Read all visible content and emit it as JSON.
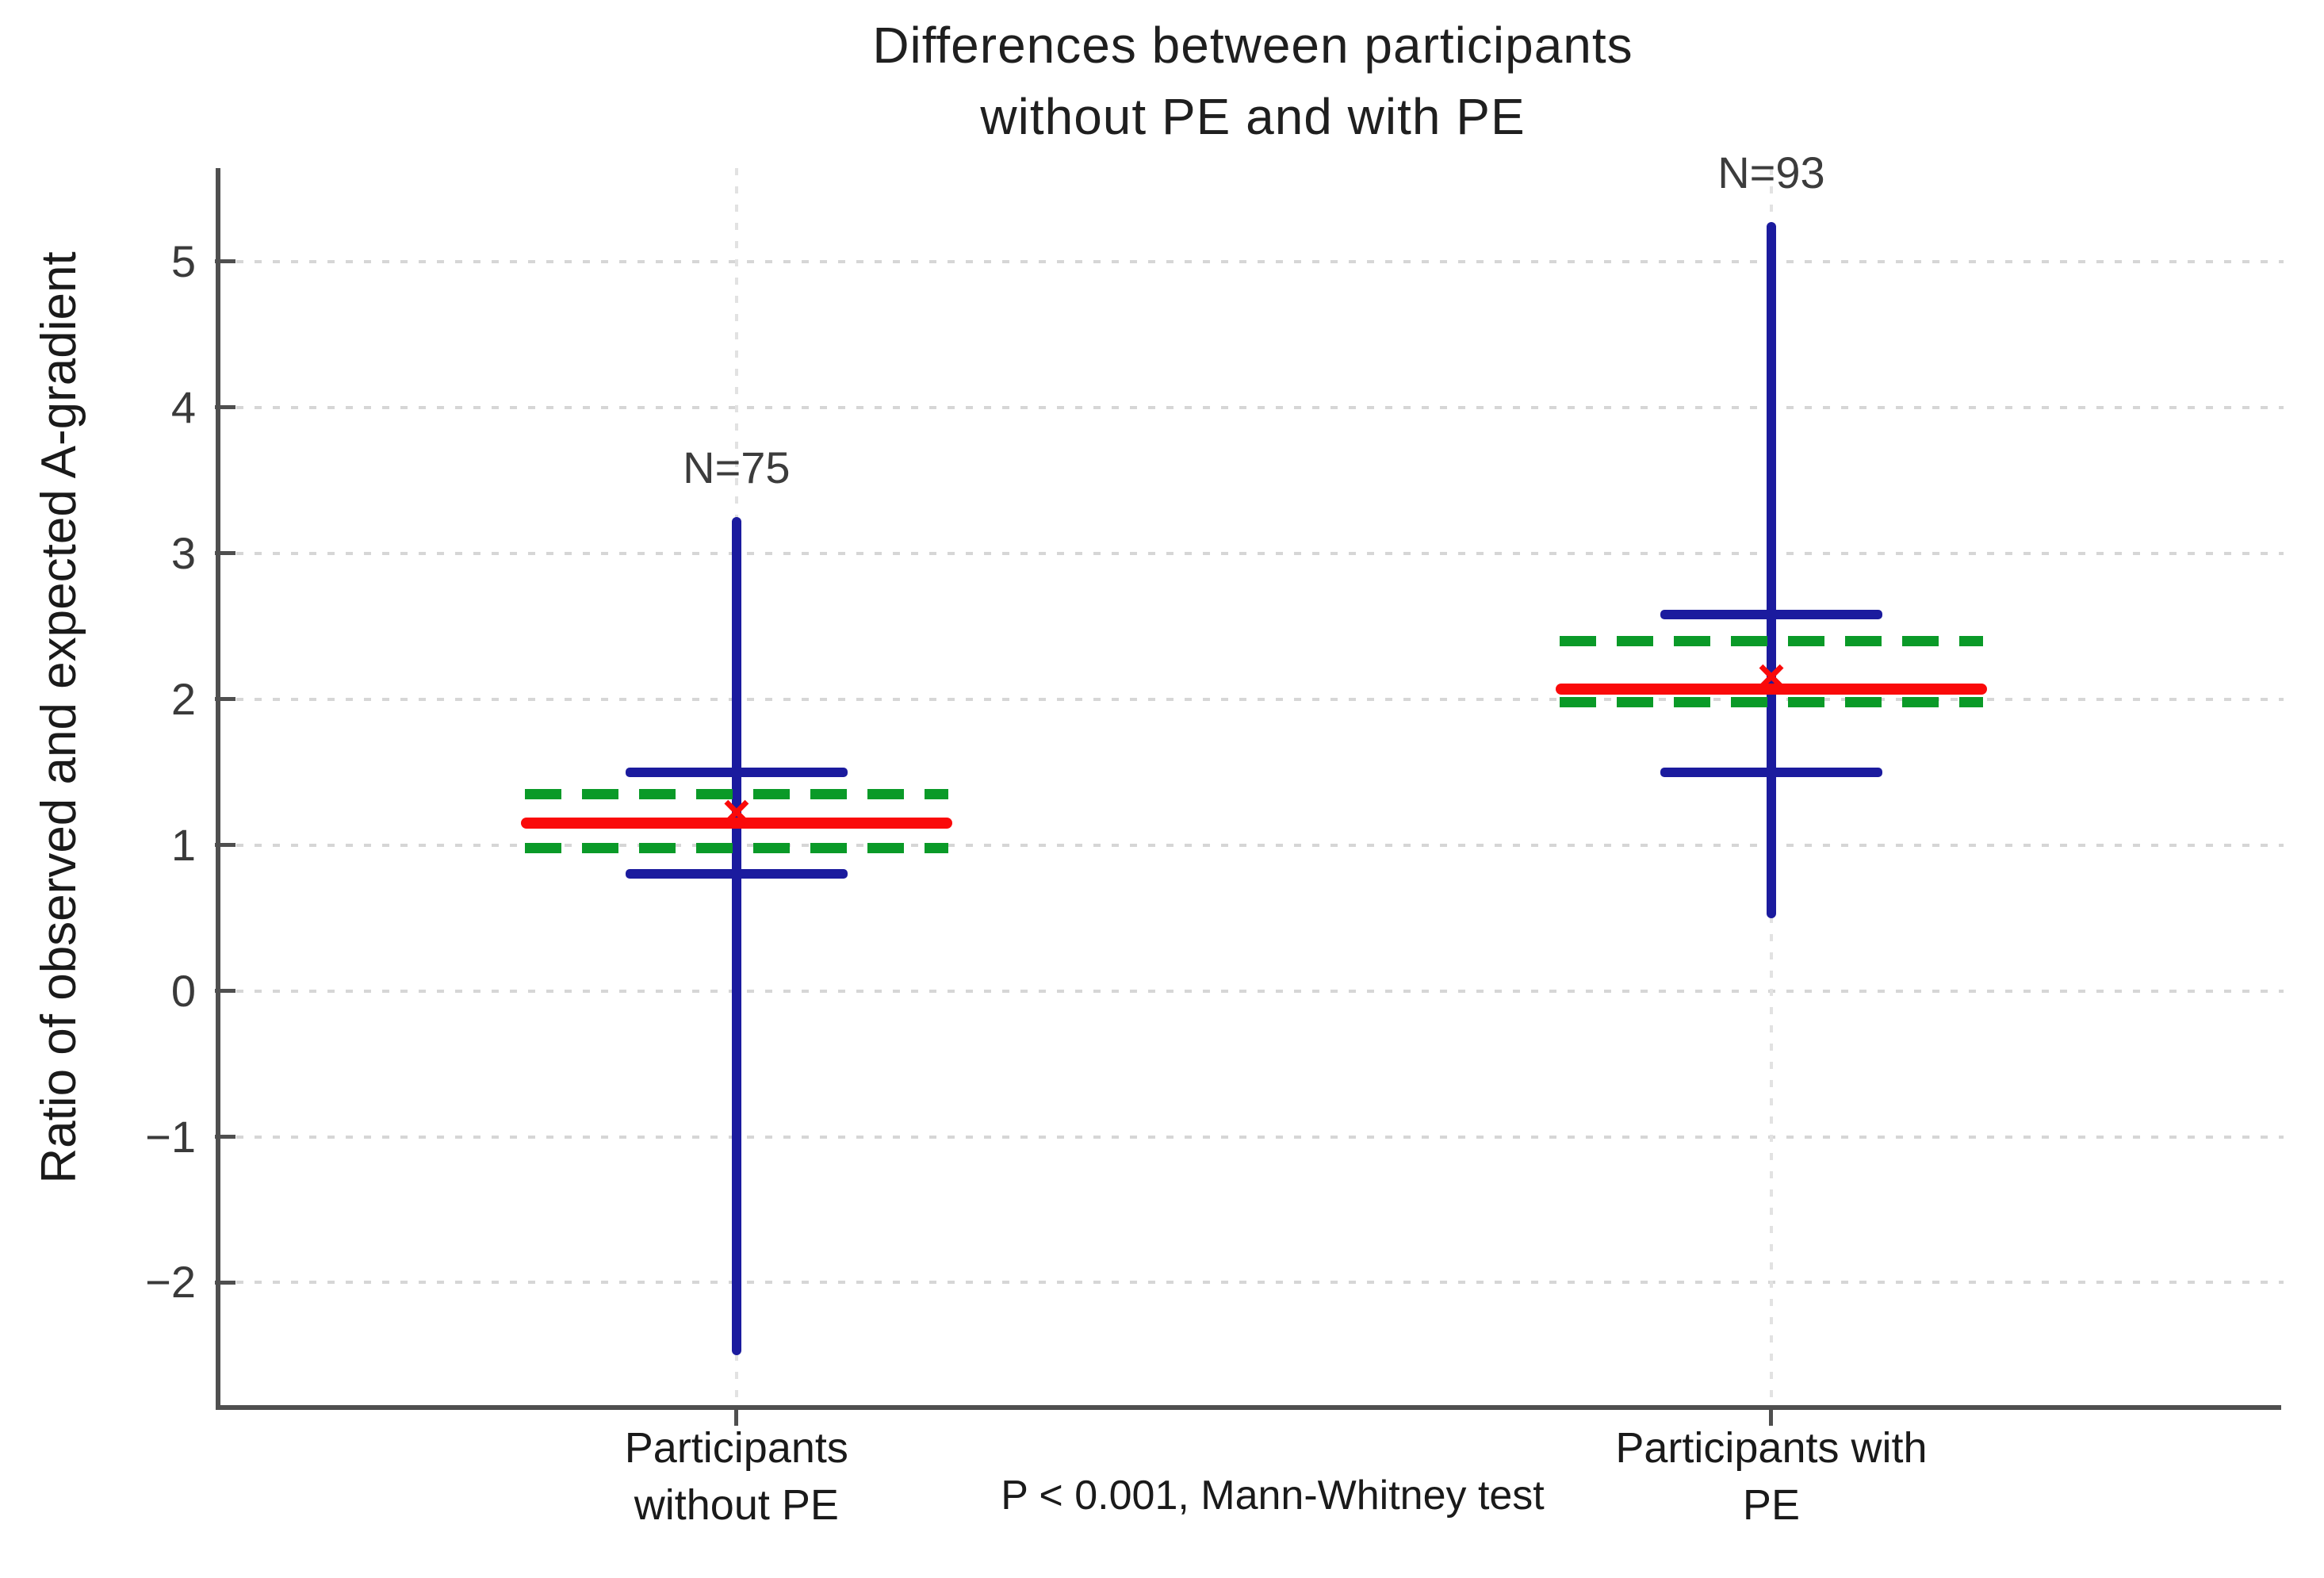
{
  "page": {
    "background": "#ffffff"
  },
  "chart_data": {
    "type": "boxplot",
    "title_lines": [
      "Differences between participants",
      "without PE and with PE"
    ],
    "ylabel": "Ratio of observed and expected A-gradient",
    "annotation": "P < 0.001, Mann-Whitney test",
    "ylim": [
      -2.84,
      5.64
    ],
    "yticks": [
      5,
      4,
      3,
      2,
      1,
      0,
      -1,
      -2
    ],
    "grid": "horizontal dotted gridlines at integer ticks, faint dotted vertical line at each group center",
    "legend_position": "none",
    "marker_legend": {
      "whisker": "dark blue vertical range line with horizontal caps",
      "ci_dashed": "green dashed interval lines",
      "median": "red solid line",
      "mean": "red x marker"
    },
    "colors": {
      "whisker": "#1b1b9e",
      "median": "#fa0a0a",
      "mean_marker": "#fa0a0a",
      "ci": "#0a9a28",
      "grid": "#d6d6d6",
      "axis": "#4f4f4f",
      "title_text": "#1f1f1f",
      "tick_text": "#3a3a3a"
    },
    "groups": [
      {
        "label_lines": [
          "Participants",
          "without PE"
        ],
        "n_label": "N=75",
        "x_frac": 0.251,
        "whisker_high": 3.25,
        "whisker_low": -2.5,
        "cap_high": 1.5,
        "cap_low": 0.8,
        "ci_high": 1.35,
        "ci_low": 0.98,
        "median": 1.15,
        "mean": 1.22
      },
      {
        "label_lines": [
          "Participants with",
          "PE"
        ],
        "n_label": "N=93",
        "x_frac": 0.752,
        "whisker_high": 5.27,
        "whisker_low": 0.5,
        "cap_high": 2.58,
        "cap_low": 1.5,
        "ci_high": 2.4,
        "ci_low": 1.98,
        "median": 2.07,
        "mean": 2.15
      }
    ]
  }
}
